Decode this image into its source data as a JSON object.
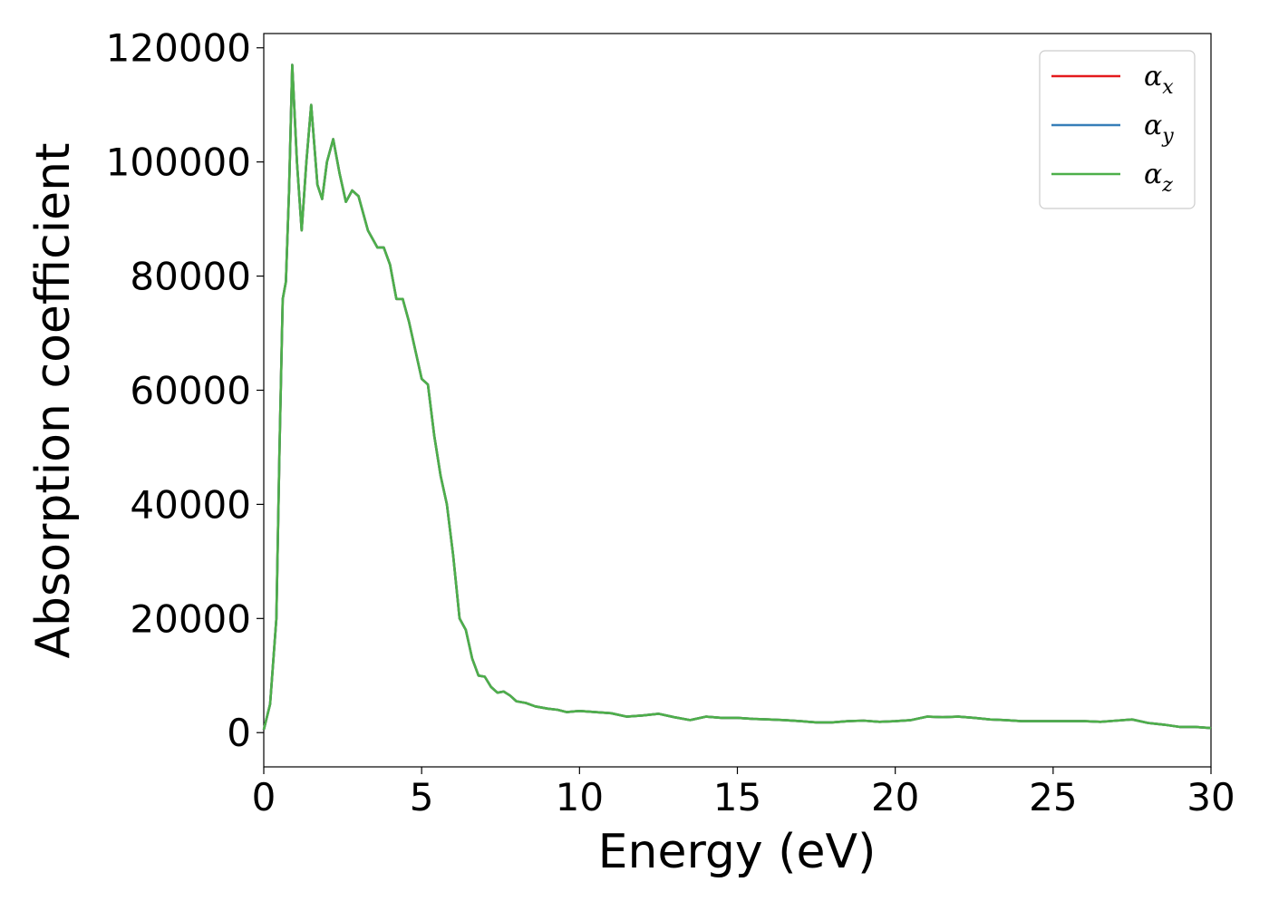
{
  "chart_data": {
    "type": "line",
    "title": "",
    "xlabel": "Energy (eV)",
    "ylabel": "Absorption coefficient",
    "xlim": [
      0,
      30
    ],
    "ylim": [
      -6000,
      122500
    ],
    "xticks": [
      "0",
      "5",
      "10",
      "15",
      "20",
      "25",
      "30"
    ],
    "xtick_values": [
      0,
      5,
      10,
      15,
      20,
      25,
      30
    ],
    "yticks": [
      "0",
      "20000",
      "40000",
      "60000",
      "80000",
      "100000",
      "120000"
    ],
    "ytick_values": [
      0,
      20000,
      40000,
      60000,
      80000,
      100000,
      120000
    ],
    "grid": false,
    "legend_position": "top-right",
    "x": [
      0,
      0.2,
      0.4,
      0.5,
      0.6,
      0.7,
      0.8,
      0.9,
      1.05,
      1.2,
      1.35,
      1.5,
      1.7,
      1.85,
      2.0,
      2.2,
      2.4,
      2.6,
      2.8,
      3.0,
      3.3,
      3.6,
      3.8,
      4.0,
      4.2,
      4.4,
      4.6,
      4.8,
      5.0,
      5.2,
      5.4,
      5.6,
      5.8,
      6.0,
      6.2,
      6.4,
      6.6,
      6.8,
      7.0,
      7.2,
      7.4,
      7.6,
      7.8,
      8.0,
      8.3,
      8.6,
      9.0,
      9.3,
      9.6,
      10.0,
      10.5,
      11.0,
      11.5,
      12.0,
      12.5,
      13.0,
      13.5,
      14.0,
      14.5,
      15.0,
      15.5,
      16.0,
      16.5,
      17.0,
      17.5,
      18.0,
      18.5,
      19.0,
      19.5,
      20.0,
      20.5,
      21.0,
      21.5,
      22.0,
      22.5,
      23.0,
      23.5,
      24.0,
      24.5,
      25.0,
      25.5,
      26.0,
      26.5,
      27.0,
      27.5,
      28.0,
      28.5,
      29.0,
      29.5,
      30.0
    ],
    "series": [
      {
        "name": "α_x",
        "color": "#e41a1c",
        "values": [
          500,
          5000,
          20000,
          50000,
          76000,
          79000,
          95000,
          117000,
          100000,
          88000,
          100000,
          110000,
          96000,
          93500,
          100000,
          104000,
          98000,
          93000,
          95000,
          94000,
          88000,
          85000,
          85000,
          82000,
          76000,
          76000,
          72000,
          67000,
          62000,
          61000,
          52000,
          45000,
          40000,
          31000,
          20000,
          18000,
          13000,
          10000,
          9800,
          8000,
          7000,
          7200,
          6500,
          5500,
          5200,
          4600,
          4200,
          4000,
          3600,
          3800,
          3600,
          3400,
          2800,
          3000,
          3300,
          2700,
          2200,
          2800,
          2600,
          2600,
          2400,
          2300,
          2200,
          2000,
          1800,
          1800,
          2000,
          2100,
          1900,
          2000,
          2200,
          2800,
          2700,
          2800,
          2600,
          2300,
          2200,
          2000,
          2000,
          2000,
          2000,
          2000,
          1900,
          2100,
          2300,
          1700,
          1400,
          1000,
          1000,
          800
        ]
      },
      {
        "name": "α_y",
        "color": "#377eb8",
        "values": [
          500,
          5000,
          20000,
          50000,
          76000,
          79000,
          95000,
          117000,
          100000,
          88000,
          100000,
          110000,
          96000,
          93500,
          100000,
          104000,
          98000,
          93000,
          95000,
          94000,
          88000,
          85000,
          85000,
          82000,
          76000,
          76000,
          72000,
          67000,
          62000,
          61000,
          52000,
          45000,
          40000,
          31000,
          20000,
          18000,
          13000,
          10000,
          9800,
          8000,
          7000,
          7200,
          6500,
          5500,
          5200,
          4600,
          4200,
          4000,
          3600,
          3800,
          3600,
          3400,
          2800,
          3000,
          3300,
          2700,
          2200,
          2800,
          2600,
          2600,
          2400,
          2300,
          2200,
          2000,
          1800,
          1800,
          2000,
          2100,
          1900,
          2000,
          2200,
          2800,
          2700,
          2800,
          2600,
          2300,
          2200,
          2000,
          2000,
          2000,
          2000,
          2000,
          1900,
          2100,
          2300,
          1700,
          1400,
          1000,
          1000,
          800
        ]
      },
      {
        "name": "α_z",
        "color": "#4daf4a",
        "values": [
          500,
          5000,
          20000,
          50000,
          76000,
          79000,
          95000,
          117000,
          100000,
          88000,
          100000,
          110000,
          96000,
          93500,
          100000,
          104000,
          98000,
          93000,
          95000,
          94000,
          88000,
          85000,
          85000,
          82000,
          76000,
          76000,
          72000,
          67000,
          62000,
          61000,
          52000,
          45000,
          40000,
          31000,
          20000,
          18000,
          13000,
          10000,
          9800,
          8000,
          7000,
          7200,
          6500,
          5500,
          5200,
          4600,
          4200,
          4000,
          3600,
          3800,
          3600,
          3400,
          2800,
          3000,
          3300,
          2700,
          2200,
          2800,
          2600,
          2600,
          2400,
          2300,
          2200,
          2000,
          1800,
          1800,
          2000,
          2100,
          1900,
          2000,
          2200,
          2800,
          2700,
          2800,
          2600,
          2300,
          2200,
          2000,
          2000,
          2000,
          2000,
          2000,
          1900,
          2100,
          2300,
          1700,
          1400,
          1000,
          1000,
          800
        ]
      }
    ],
    "legend": [
      {
        "symbol": "α",
        "sub": "x",
        "color": "#e41a1c"
      },
      {
        "symbol": "α",
        "sub": "y",
        "color": "#377eb8"
      },
      {
        "symbol": "α",
        "sub": "z",
        "color": "#4daf4a"
      }
    ]
  }
}
